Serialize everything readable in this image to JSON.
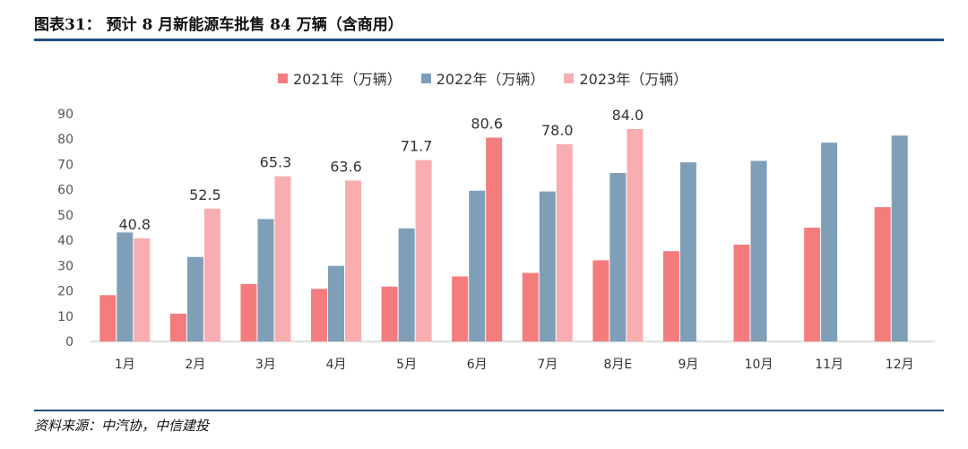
{
  "header": {
    "title": "图表31： 预计 8 月新能源车批售 84 万辆（含商用）"
  },
  "footer": {
    "source": "资料来源：中汽协，中信建投"
  },
  "colors": {
    "series_2021": "#f47c7c",
    "series_2022": "#7f9fb8",
    "series_2023": "#f8aeb0",
    "rule": "#1f4e79"
  },
  "chart_data": {
    "type": "bar",
    "title": "",
    "xlabel": "",
    "ylabel": "",
    "ylim": [
      0,
      90
    ],
    "yticks": [
      0,
      10,
      20,
      30,
      40,
      50,
      60,
      70,
      80,
      90
    ],
    "grid": false,
    "legend_position": "top-center",
    "categories": [
      "1月",
      "2月",
      "3月",
      "4月",
      "5月",
      "6月",
      "7月",
      "8月E",
      "9月",
      "10月",
      "11月",
      "12月"
    ],
    "series": [
      {
        "name": "2021年（万辆）",
        "values": [
          18.3,
          11.0,
          22.7,
          20.8,
          21.7,
          25.7,
          27.1,
          32.1,
          35.7,
          38.3,
          45.0,
          53.1
        ]
      },
      {
        "name": "2022年（万辆）",
        "values": [
          43.1,
          33.4,
          48.4,
          29.9,
          44.7,
          59.6,
          59.3,
          66.6,
          70.8,
          71.4,
          78.6,
          81.4
        ]
      },
      {
        "name": "2023年（万辆）",
        "values": [
          40.8,
          52.5,
          65.3,
          63.6,
          71.7,
          80.6,
          78.0,
          84.0,
          null,
          null,
          null,
          null
        ]
      }
    ],
    "data_labels": {
      "series": "2023年（万辆）",
      "labels": [
        "40.8",
        "52.5",
        "65.3",
        "63.6",
        "71.7",
        "80.6",
        "78.0",
        "84.0"
      ]
    },
    "highlight": {
      "category": "6月",
      "series": "2023年（万辆）",
      "color": "#f47c7c"
    }
  }
}
